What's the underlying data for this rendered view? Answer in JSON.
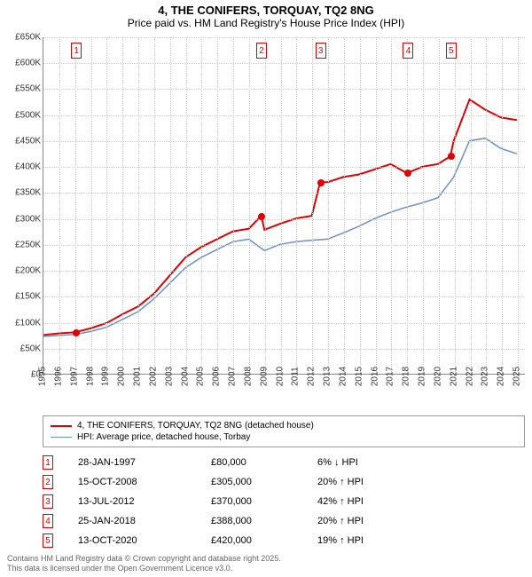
{
  "title": "4, THE CONIFERS, TORQUAY, TQ2 8NG",
  "subtitle": "Price paid vs. HM Land Registry's House Price Index (HPI)",
  "chart": {
    "type": "line",
    "xlim": [
      1995,
      2025.5
    ],
    "ylim": [
      0,
      650000
    ],
    "ytick_step": 50000,
    "ytick_prefix": "£",
    "ytick_suffix": "K",
    "xtick_step": 1,
    "xticks": [
      1995,
      1996,
      1997,
      1998,
      1999,
      2000,
      2001,
      2002,
      2003,
      2004,
      2005,
      2006,
      2007,
      2008,
      2009,
      2010,
      2011,
      2012,
      2013,
      2014,
      2015,
      2016,
      2017,
      2018,
      2019,
      2020,
      2021,
      2022,
      2023,
      2024,
      2025
    ],
    "grid_color": "#cccccc",
    "axis_color": "#888888",
    "background_color": "#ffffff",
    "title_fontsize": 13,
    "label_fontsize": 10,
    "series": [
      {
        "name": "4, THE CONIFERS, TORQUAY, TQ2 8NG (detached house)",
        "color": "#e00000",
        "line_width": 2,
        "x": [
          1995,
          1996,
          1997,
          1998,
          1999,
          2000,
          2001,
          2002,
          2003,
          2004,
          2005,
          2006,
          2007,
          2008,
          2008.79,
          2009,
          2010,
          2011,
          2012,
          2012.53,
          2013,
          2014,
          2015,
          2016,
          2017,
          2018,
          2018.07,
          2019,
          2020,
          2020.78,
          2021,
          2022,
          2023,
          2024,
          2025
        ],
        "y": [
          75000,
          78000,
          80000,
          88000,
          98000,
          115000,
          130000,
          155000,
          190000,
          225000,
          245000,
          260000,
          275000,
          280000,
          305000,
          278000,
          290000,
          300000,
          305000,
          370000,
          370000,
          380000,
          385000,
          395000,
          405000,
          388000,
          388000,
          400000,
          405000,
          420000,
          450000,
          530000,
          510000,
          495000,
          490000
        ]
      },
      {
        "name": "HPI: Average price, detached house, Torbay",
        "color": "#6a8fc5",
        "line_width": 1.5,
        "x": [
          1995,
          1996,
          1997,
          1998,
          1999,
          2000,
          2001,
          2002,
          2003,
          2004,
          2005,
          2006,
          2007,
          2008,
          2009,
          2010,
          2011,
          2012,
          2013,
          2014,
          2015,
          2016,
          2017,
          2018,
          2019,
          2020,
          2021,
          2022,
          2023,
          2024,
          2025
        ],
        "y": [
          72000,
          74000,
          76000,
          82000,
          90000,
          105000,
          120000,
          145000,
          175000,
          205000,
          225000,
          240000,
          255000,
          260000,
          238000,
          250000,
          255000,
          258000,
          260000,
          272000,
          285000,
          300000,
          312000,
          322000,
          330000,
          340000,
          380000,
          450000,
          455000,
          435000,
          425000
        ]
      }
    ],
    "events": [
      {
        "n": 1,
        "x": 1997.08,
        "date": "28-JAN-1997",
        "price": "£80,000",
        "delta": "6% ↓ HPI"
      },
      {
        "n": 2,
        "x": 2008.79,
        "date": "15-OCT-2008",
        "price": "£305,000",
        "delta": "20% ↑ HPI"
      },
      {
        "n": 3,
        "x": 2012.53,
        "date": "13-JUL-2012",
        "price": "£370,000",
        "delta": "42% ↑ HPI"
      },
      {
        "n": 4,
        "x": 2018.07,
        "date": "25-JAN-2018",
        "price": "£388,000",
        "delta": "20% ↑ HPI"
      },
      {
        "n": 5,
        "x": 2020.78,
        "date": "13-OCT-2020",
        "price": "£420,000",
        "delta": "19% ↑ HPI"
      }
    ],
    "event_marker_color": "#e00000",
    "event_dot_y": [
      80000,
      305000,
      370000,
      388000,
      420000
    ]
  },
  "legend": {
    "items": [
      {
        "label": "4, THE CONIFERS, TORQUAY, TQ2 8NG (detached house)",
        "color": "#e00000",
        "weight": 2
      },
      {
        "label": "HPI: Average price, detached house, Torbay",
        "color": "#6a8fc5",
        "weight": 1.5
      }
    ]
  },
  "license": {
    "line1": "Contains HM Land Registry data © Crown copyright and database right 2025.",
    "line2": "This data is licensed under the Open Government Licence v3.0."
  }
}
